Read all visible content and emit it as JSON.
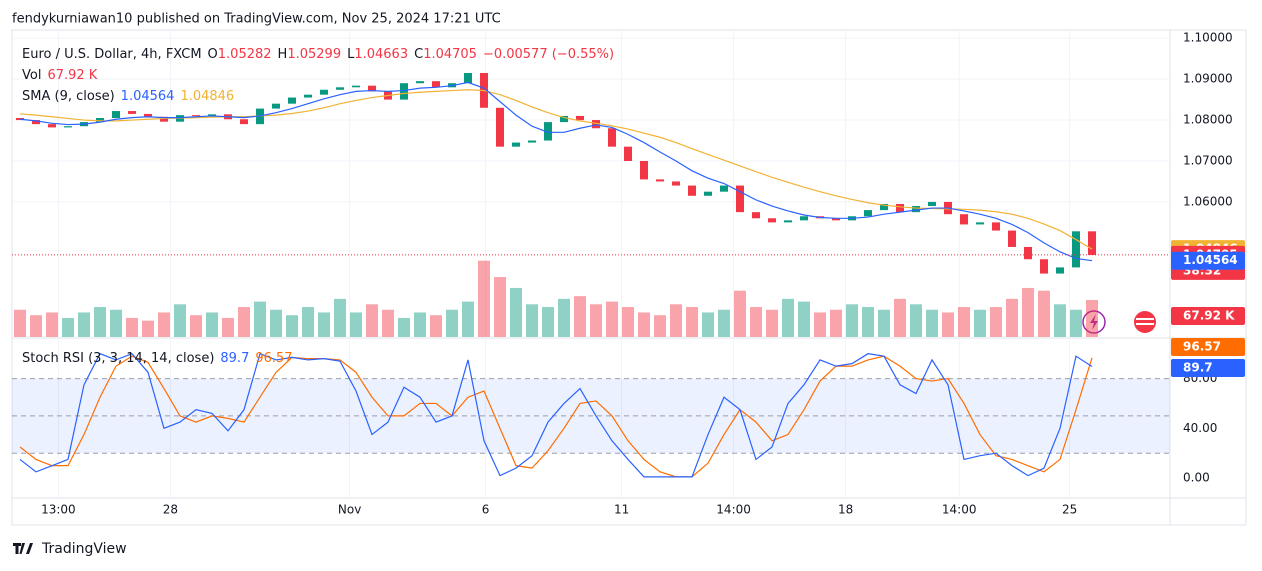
{
  "header": {
    "publisher": "fendykurniawan10 published on TradingView.com, Nov 25, 2024 17:21 UTC",
    "footer": "TradingView"
  },
  "chart_data": {
    "type": "candlestick",
    "symbol": "Euro / U.S. Dollar, 4h, FXCM",
    "ohlc_letters": [
      "O",
      "H",
      "L",
      "C"
    ],
    "high": 1.05299,
    "low": 1.04663,
    "change": "−0.00577 (−0.55%)",
    "countdown": "38:32",
    "vol_title": "Vol",
    "last_volume_label": "67.92 K",
    "sma_title": "SMA (9, close)",
    "stoch_title": "Stoch RSI (3, 3, 14, 14, close)",
    "up_color": "#089981",
    "down_color": "#f23645",
    "sma_fast_color": "#2962ff",
    "sma_slow_color": "#f2b233",
    "k_color": "#2962ff",
    "d_color": "#ff6d00",
    "ylim": [
      1.027,
      1.102
    ],
    "yticks": [
      {
        "value": 1.1,
        "label": "1.10000"
      },
      {
        "value": 1.09,
        "label": "1.09000"
      },
      {
        "value": 1.08,
        "label": "1.08000"
      },
      {
        "value": 1.07,
        "label": "1.07000"
      },
      {
        "value": 1.06,
        "label": "1.06000"
      }
    ],
    "xticks": [
      {
        "value": 2.4,
        "label": "13:00"
      },
      {
        "value": 9.4,
        "label": "28"
      },
      {
        "value": 20.6,
        "label": "Nov"
      },
      {
        "value": 29.1,
        "label": "6"
      },
      {
        "value": 37.6,
        "label": "11"
      },
      {
        "value": 44.6,
        "label": "14:00"
      },
      {
        "value": 51.6,
        "label": "18"
      },
      {
        "value": 58.7,
        "label": "14:00"
      },
      {
        "value": 65.6,
        "label": "25"
      }
    ],
    "open": [
      1.0805,
      1.08,
      1.079,
      1.0782,
      1.0785,
      1.0795,
      1.0805,
      1.0822,
      1.0815,
      1.0808,
      1.0796,
      1.0812,
      1.081,
      1.0814,
      1.0802,
      1.079,
      1.0828,
      1.084,
      1.0855,
      1.0862,
      1.0874,
      1.088,
      1.0884,
      1.087,
      1.085,
      1.089,
      1.0895,
      1.088,
      1.089,
      1.0915,
      1.083,
      1.0735,
      1.0745,
      1.075,
      1.0795,
      1.081,
      1.08,
      1.078,
      1.0735,
      1.07,
      1.0655,
      1.065,
      1.064,
      1.0615,
      1.0625,
      1.064,
      1.0575,
      1.056,
      1.055,
      1.0555,
      1.0565,
      1.056,
      1.0555,
      1.0565,
      1.058,
      1.0595,
      1.0575,
      1.059,
      1.06,
      1.057,
      1.0545,
      1.055,
      1.053,
      1.049,
      1.046,
      1.0425,
      1.044,
      1.05282
    ],
    "close": [
      1.08,
      1.079,
      1.0782,
      1.0785,
      1.0795,
      1.0805,
      1.0822,
      1.0815,
      1.0808,
      1.0796,
      1.0812,
      1.081,
      1.0814,
      1.0802,
      1.079,
      1.0828,
      1.084,
      1.0855,
      1.0862,
      1.0874,
      1.088,
      1.0884,
      1.087,
      1.085,
      1.089,
      1.0895,
      1.088,
      1.089,
      1.0915,
      1.083,
      1.0735,
      1.0745,
      1.075,
      1.0795,
      1.081,
      1.08,
      1.078,
      1.0735,
      1.07,
      1.0655,
      1.065,
      1.064,
      1.0615,
      1.0625,
      1.064,
      1.0575,
      1.056,
      1.055,
      1.0555,
      1.0565,
      1.056,
      1.0555,
      1.0565,
      1.058,
      1.0595,
      1.0575,
      1.059,
      1.06,
      1.057,
      1.0545,
      1.055,
      1.053,
      1.049,
      1.046,
      1.0425,
      1.044,
      1.05282,
      1.04705
    ],
    "sma_fast": [
      1.0802,
      1.0798,
      1.0792,
      1.0789,
      1.079,
      1.0795,
      1.0802,
      1.0806,
      1.0808,
      1.0806,
      1.0806,
      1.0808,
      1.081,
      1.0808,
      1.0806,
      1.081,
      1.0818,
      1.0828,
      1.084,
      1.0852,
      1.0862,
      1.087,
      1.0872,
      1.087,
      1.0872,
      1.0878,
      1.088,
      1.0884,
      1.0892,
      1.0878,
      1.0845,
      1.0812,
      1.0785,
      1.077,
      1.077,
      1.078,
      1.0788,
      1.0782,
      1.0765,
      1.0745,
      1.0722,
      1.07,
      1.0676,
      1.0658,
      1.0645,
      1.0625,
      1.0605,
      1.059,
      1.0578,
      1.0568,
      1.0562,
      1.056,
      1.056,
      1.0563,
      1.057,
      1.0575,
      1.058,
      1.0585,
      1.0585,
      1.0578,
      1.057,
      1.056,
      1.0545,
      1.0525,
      1.05,
      1.0478,
      1.0462,
      1.04564
    ],
    "sma_slow": [
      1.0815,
      1.0812,
      1.0808,
      1.0804,
      1.08,
      1.0798,
      1.0798,
      1.08,
      1.0802,
      1.0804,
      1.0805,
      1.0806,
      1.0807,
      1.0808,
      1.0808,
      1.081,
      1.0812,
      1.0816,
      1.0822,
      1.083,
      1.084,
      1.0848,
      1.0855,
      1.086,
      1.0865,
      1.0868,
      1.087,
      1.0872,
      1.0874,
      1.0872,
      1.0862,
      1.0848,
      1.0832,
      1.0818,
      1.0806,
      1.0798,
      1.0792,
      1.0786,
      1.0778,
      1.0768,
      1.0758,
      1.0745,
      1.073,
      1.0716,
      1.0702,
      1.0688,
      1.0674,
      1.066,
      1.0648,
      1.0636,
      1.0625,
      1.0615,
      1.0606,
      1.0598,
      1.0592,
      1.0588,
      1.0585,
      1.0584,
      1.0583,
      1.0582,
      1.058,
      1.0576,
      1.057,
      1.056,
      1.0546,
      1.053,
      1.0508,
      1.04846
    ],
    "volume": [
      50,
      40,
      45,
      35,
      45,
      55,
      50,
      35,
      30,
      45,
      60,
      40,
      45,
      35,
      55,
      65,
      50,
      40,
      55,
      45,
      70,
      45,
      60,
      50,
      35,
      45,
      40,
      50,
      65,
      140,
      110,
      90,
      60,
      55,
      70,
      75,
      60,
      65,
      55,
      45,
      40,
      60,
      55,
      45,
      50,
      85,
      55,
      50,
      70,
      65,
      45,
      50,
      60,
      55,
      50,
      70,
      60,
      50,
      45,
      55,
      50,
      55,
      70,
      90,
      85,
      60,
      50,
      67.92
    ],
    "stoch_ylim": [
      -16,
      111
    ],
    "stoch_yticks": [
      {
        "value": 80,
        "label": "80.00"
      },
      {
        "value": 40,
        "label": "40.00"
      },
      {
        "value": 0,
        "label": "0.00"
      }
    ],
    "stoch_levels": [
      80,
      50,
      20
    ],
    "stoch_k": [
      15,
      5,
      10,
      15,
      75,
      100,
      95,
      100,
      85,
      40,
      45,
      55,
      52,
      38,
      55,
      100,
      95,
      97,
      95,
      96,
      94,
      70,
      35,
      45,
      73,
      65,
      45,
      50,
      95,
      30,
      2,
      8,
      18,
      45,
      60,
      72,
      50,
      30,
      15,
      1,
      1,
      1,
      1,
      35,
      65,
      55,
      15,
      25,
      60,
      75,
      95,
      90,
      92,
      100,
      98,
      75,
      68,
      95,
      75,
      15,
      18,
      20,
      10,
      2,
      8,
      40,
      98,
      89.7
    ],
    "stoch_d": [
      25,
      15,
      10,
      10,
      35,
      65,
      90,
      98,
      93,
      72,
      50,
      45,
      50,
      48,
      45,
      65,
      85,
      97,
      96,
      96,
      95,
      85,
      65,
      50,
      50,
      60,
      60,
      50,
      65,
      70,
      40,
      10,
      8,
      22,
      40,
      60,
      62,
      50,
      30,
      15,
      5,
      1,
      1,
      12,
      35,
      55,
      45,
      30,
      35,
      55,
      78,
      90,
      90,
      95,
      98,
      90,
      80,
      78,
      80,
      60,
      35,
      18,
      15,
      10,
      5,
      15,
      55,
      96.57
    ]
  }
}
